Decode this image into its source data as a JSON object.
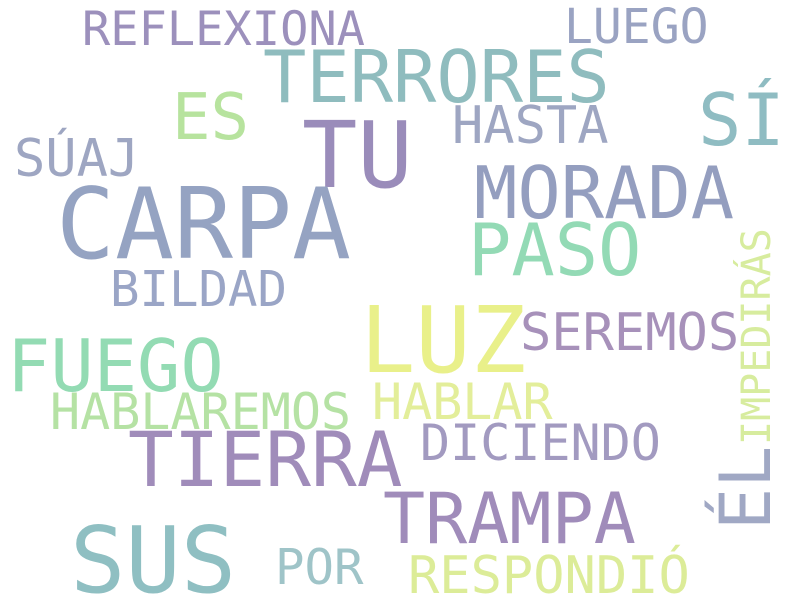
{
  "words": [
    {
      "key": "reflexiona",
      "text": "REFLEXIONA",
      "color": "#9c90bc"
    },
    {
      "key": "luego",
      "text": "LUEGO",
      "color": "#9aa3c2"
    },
    {
      "key": "terrores",
      "text": "TERRORES",
      "color": "#8fbcbe"
    },
    {
      "key": "es",
      "text": "ES",
      "color": "#b7e39e"
    },
    {
      "key": "si",
      "text": "SÍ",
      "color": "#8fbcc2"
    },
    {
      "key": "hasta",
      "text": "HASTA",
      "color": "#9ea6c2"
    },
    {
      "key": "tu",
      "text": "TU",
      "color": "#9a8cba"
    },
    {
      "key": "suaj",
      "text": "SÚAJ",
      "color": "#9ea6c2"
    },
    {
      "key": "morada",
      "text": "MORADA",
      "color": "#949ebf"
    },
    {
      "key": "carpa",
      "text": "CARPA",
      "color": "#95a3c2"
    },
    {
      "key": "paso",
      "text": "PASO",
      "color": "#93dab5"
    },
    {
      "key": "bildad",
      "text": "BILDAD",
      "color": "#9aa5c6"
    },
    {
      "key": "luz",
      "text": "LUZ",
      "color": "#e9f08a"
    },
    {
      "key": "seremos",
      "text": "SEREMOS",
      "color": "#a791ba"
    },
    {
      "key": "fuego",
      "text": "FUEGO",
      "color": "#93dbb3"
    },
    {
      "key": "hablar",
      "text": "HABLAR",
      "color": "#e3ee9a"
    },
    {
      "key": "hablaremos",
      "text": "HABLAREMOS",
      "color": "#b5e2a4"
    },
    {
      "key": "diciendo",
      "text": "DICIENDO",
      "color": "#a29ac0"
    },
    {
      "key": "tierra",
      "text": "TIERRA",
      "color": "#a08cba"
    },
    {
      "key": "trampa",
      "text": "TRAMPA",
      "color": "#a08cba"
    },
    {
      "key": "sus",
      "text": "SUS",
      "color": "#8fbfc2"
    },
    {
      "key": "por",
      "text": "POR",
      "color": "#9fc4c8"
    },
    {
      "key": "respondio",
      "text": "RESPONDIÓ",
      "color": "#dcec98"
    },
    {
      "key": "impediras",
      "text": "IMPEDIRÁS",
      "color": "#d7ec9e",
      "orientation": "vertical"
    },
    {
      "key": "el",
      "text": "ÉL",
      "color": "#a0a8c4",
      "orientation": "vertical"
    }
  ]
}
